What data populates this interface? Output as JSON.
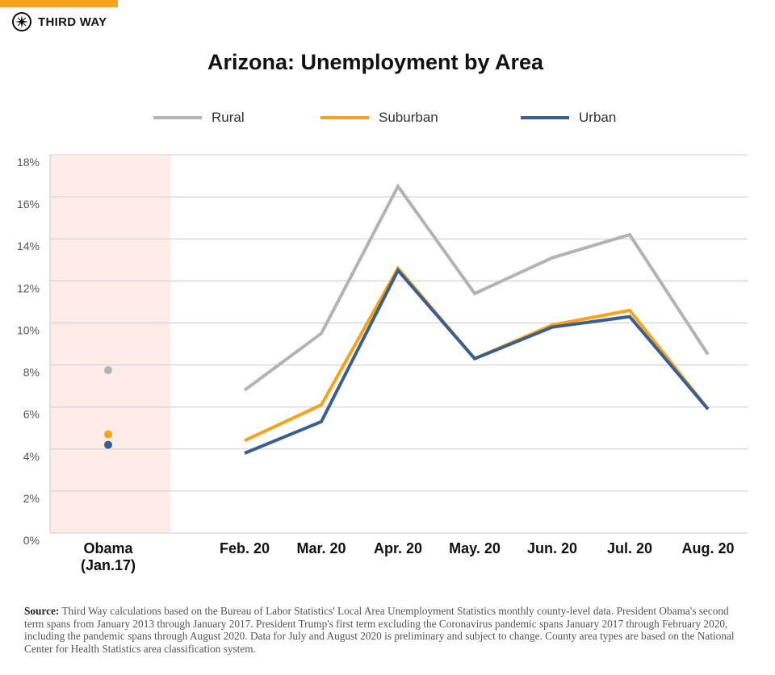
{
  "brand": {
    "name": "THIRD WAY",
    "accent": "#f7a21b"
  },
  "chart_data": {
    "type": "line",
    "title": "Arizona: Unemployment by Area",
    "categories": [
      "Obama\n(Jan.17)",
      "Feb. 20",
      "Mar. 20",
      "Apr. 20",
      "May. 20",
      "Jun. 20",
      "Jul. 20",
      "Aug. 20"
    ],
    "category_lines": [
      [
        "Obama",
        "(Jan.17)"
      ],
      [
        "Feb. 20"
      ],
      [
        "Mar. 20"
      ],
      [
        "Apr. 20"
      ],
      [
        "May. 20"
      ],
      [
        "Jun. 20"
      ],
      [
        "Jul. 20"
      ],
      [
        "Aug. 20"
      ]
    ],
    "ylim": [
      0,
      18
    ],
    "yticks": [
      "0%",
      "2%",
      "4%",
      "6%",
      "8%",
      "10%",
      "12%",
      "14%",
      "16%",
      "18%"
    ],
    "grid": true,
    "legend_position": "top",
    "highlight_region": {
      "category": "Obama\n(Jan.17)",
      "color": "#fdece8"
    },
    "series": [
      {
        "name": "Rural",
        "color": "#b3b3b3",
        "values": [
          7.75,
          6.8,
          9.5,
          16.5,
          11.4,
          13.1,
          14.2,
          8.5
        ]
      },
      {
        "name": "Suburban",
        "color": "#f7a21b",
        "values": [
          4.7,
          4.4,
          6.1,
          12.6,
          8.3,
          9.9,
          10.6,
          5.9
        ]
      },
      {
        "name": "Urban",
        "color": "#3a5f8e",
        "values": [
          4.2,
          3.8,
          5.3,
          12.5,
          8.3,
          9.8,
          10.3,
          5.9
        ]
      }
    ]
  },
  "source": {
    "label": "Source:",
    "text": "Third Way calculations based on the Bureau of Labor Statistics' Local Area Unemployment Statistics monthly county-level data. President Obama's second term spans from January 2013 through January 2017. President Trump's first term excluding the Coronavirus pandemic spans January 2017 through February 2020, including the pandemic spans through August 2020. Data for July and August 2020 is preliminary and subject to change. County area types are based on the National Center for Health Statistics area classification system."
  }
}
